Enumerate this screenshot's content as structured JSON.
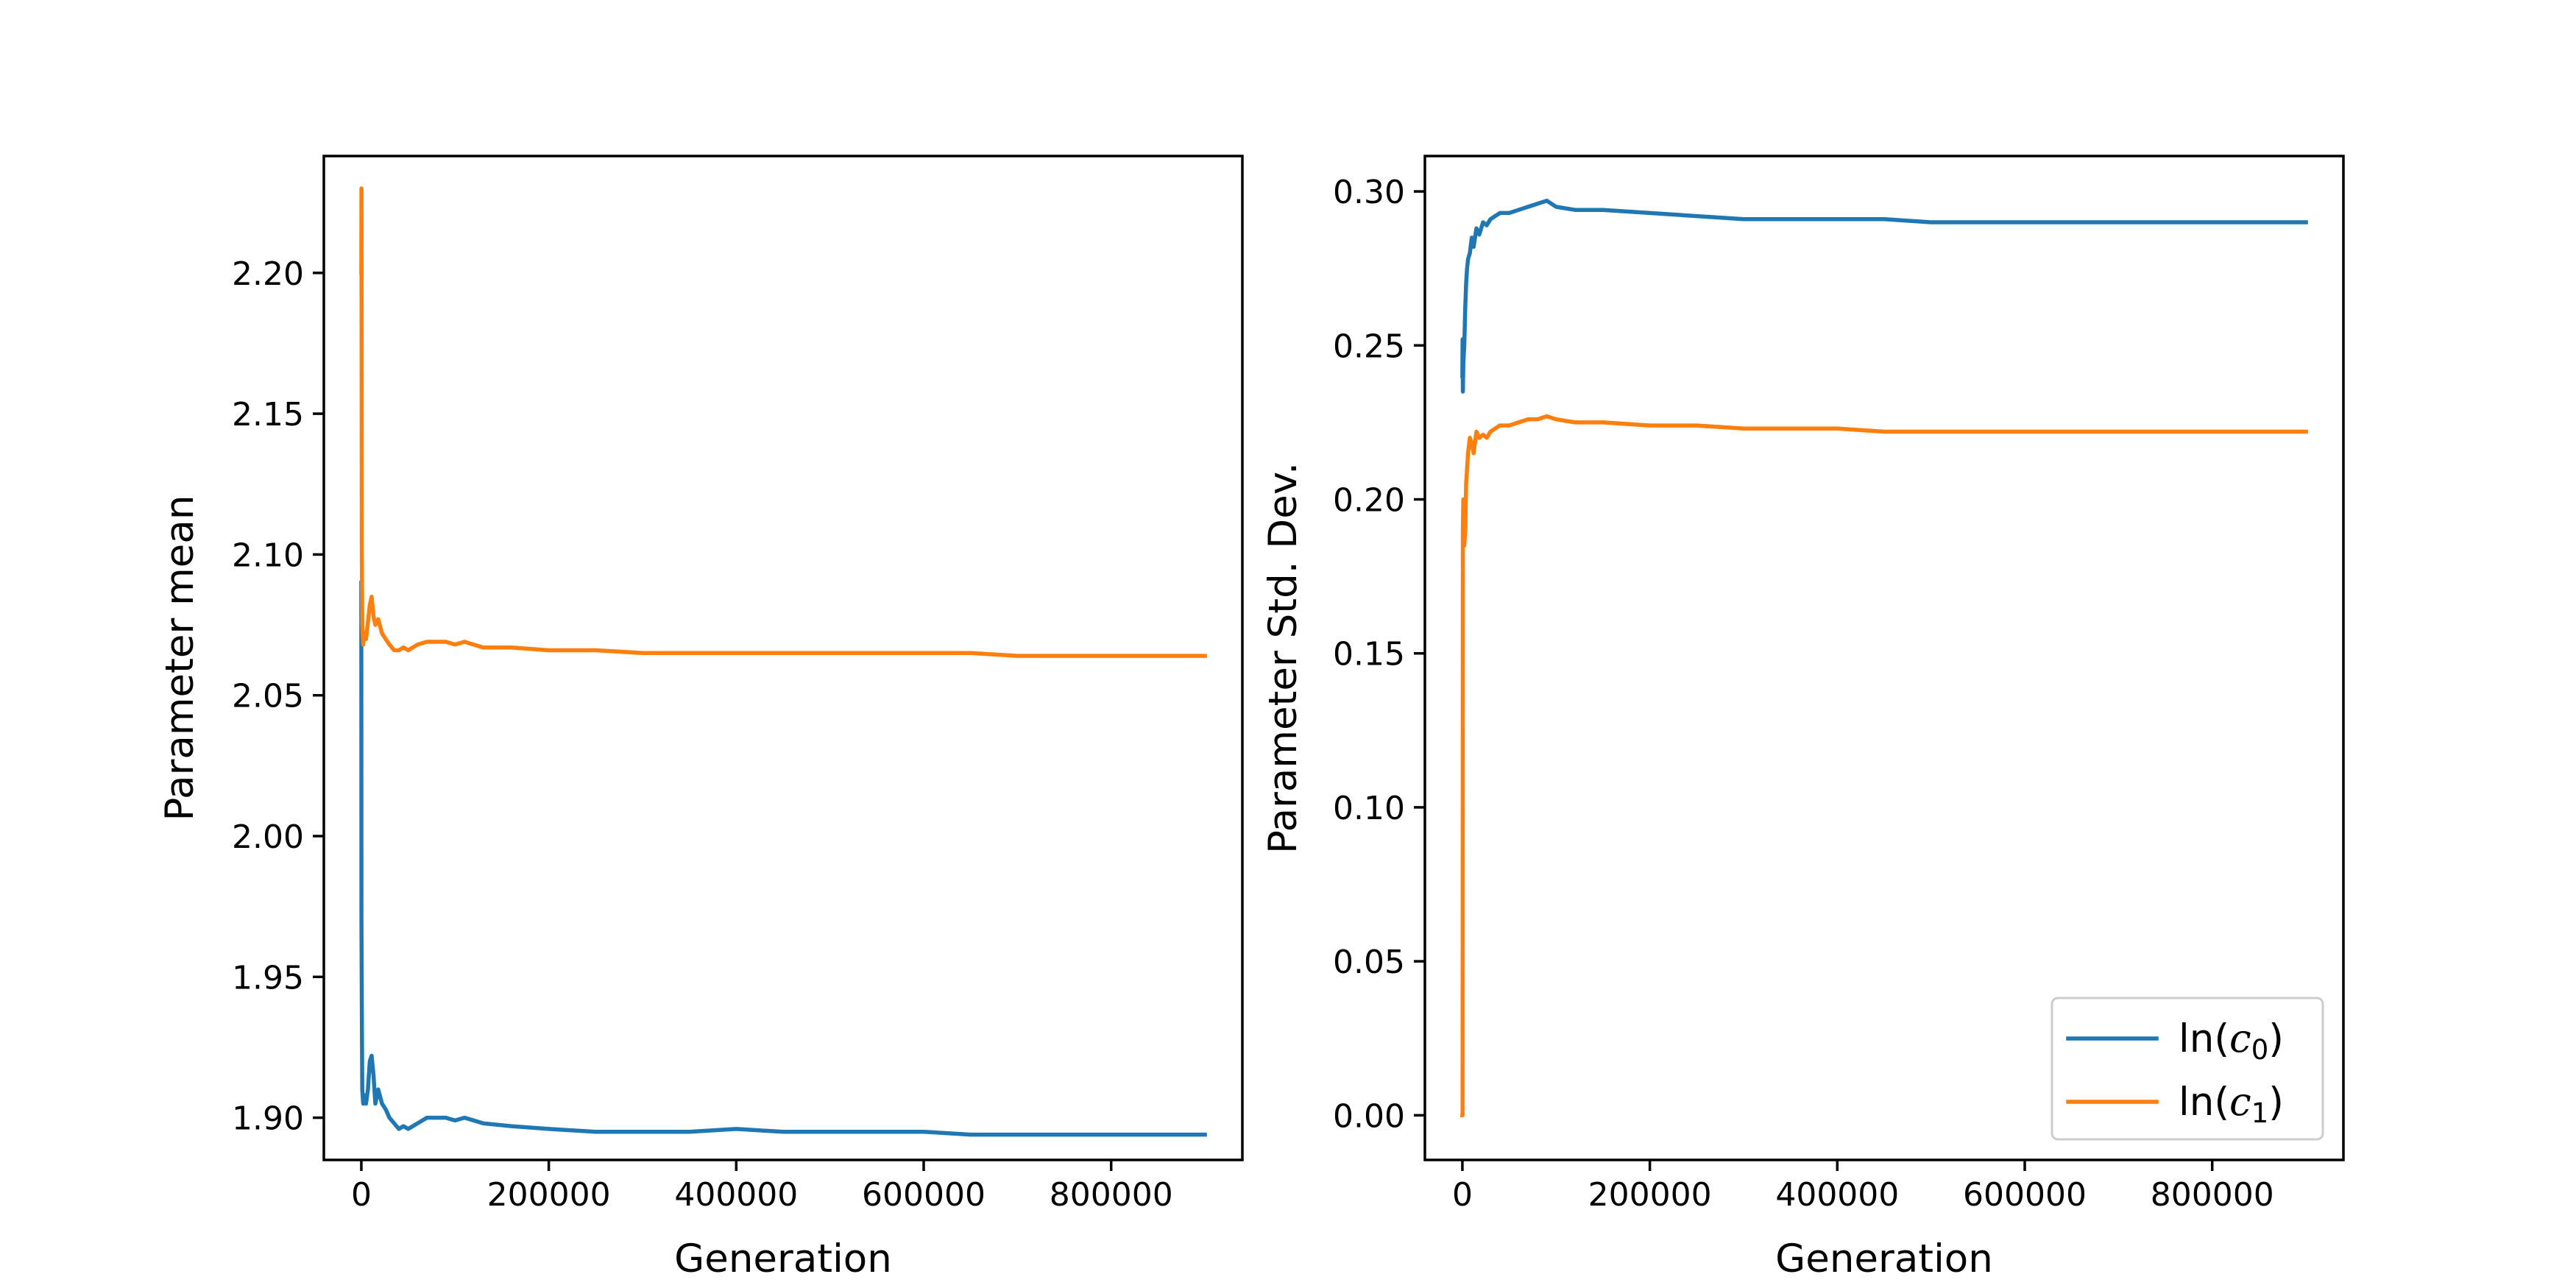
{
  "colors": {
    "series0": "#1f77b4",
    "series1": "#ff7f0e",
    "legend_frame": "#cccccc"
  },
  "legend": {
    "placement": "lower-right",
    "panel": 1,
    "entries": [
      {
        "prefix": "ln(",
        "var": "c",
        "sub": "0",
        "suffix": ")",
        "series_index": 0
      },
      {
        "prefix": "ln(",
        "var": "c",
        "sub": "1",
        "suffix": ")",
        "series_index": 1
      }
    ]
  },
  "chart_data": [
    {
      "type": "line",
      "xlabel": "Generation",
      "ylabel": "Parameter mean",
      "xlim": [
        -40000,
        940000
      ],
      "ylim": [
        1.885,
        2.2415
      ],
      "grid": false,
      "xticks": [
        0,
        200000,
        400000,
        600000,
        800000
      ],
      "xtick_labels": [
        "0",
        "200000",
        "400000",
        "600000",
        "800000"
      ],
      "yticks": [
        1.9,
        1.95,
        2.0,
        2.05,
        2.1,
        2.15,
        2.2
      ],
      "ytick_labels": [
        "1.90",
        "1.95",
        "2.00",
        "2.05",
        "2.10",
        "2.15",
        "2.20"
      ],
      "series": [
        {
          "name": "ln(c0)",
          "color_key": "series0",
          "x": [
            0,
            100,
            500,
            1000,
            2000,
            3000,
            5000,
            7000,
            9000,
            11000,
            13000,
            15000,
            18000,
            22000,
            26000,
            30000,
            35000,
            40000,
            45000,
            50000,
            60000,
            70000,
            80000,
            90000,
            100000,
            110000,
            130000,
            160000,
            200000,
            250000,
            300000,
            350000,
            400000,
            450000,
            500000,
            550000,
            600000,
            650000,
            700000,
            750000,
            800000,
            850000,
            900000
          ],
          "values": [
            2.09,
            1.97,
            1.94,
            1.91,
            1.905,
            1.908,
            1.905,
            1.91,
            1.92,
            1.922,
            1.915,
            1.905,
            1.91,
            1.905,
            1.903,
            1.9,
            1.898,
            1.896,
            1.897,
            1.896,
            1.898,
            1.9,
            1.9,
            1.9,
            1.899,
            1.9,
            1.898,
            1.897,
            1.896,
            1.895,
            1.895,
            1.895,
            1.896,
            1.895,
            1.895,
            1.895,
            1.895,
            1.894,
            1.894,
            1.894,
            1.894,
            1.894,
            1.894
          ]
        },
        {
          "name": "ln(c1)",
          "color_key": "series1",
          "x": [
            0,
            100,
            500,
            1000,
            2000,
            3000,
            5000,
            7000,
            9000,
            11000,
            13000,
            15000,
            18000,
            22000,
            26000,
            30000,
            35000,
            40000,
            45000,
            50000,
            60000,
            70000,
            80000,
            90000,
            100000,
            110000,
            130000,
            160000,
            200000,
            250000,
            300000,
            350000,
            400000,
            450000,
            500000,
            550000,
            600000,
            650000,
            700000,
            750000,
            800000,
            850000,
            900000
          ],
          "values": [
            2.2,
            2.23,
            2.1,
            2.075,
            2.068,
            2.072,
            2.07,
            2.076,
            2.082,
            2.085,
            2.078,
            2.075,
            2.077,
            2.072,
            2.07,
            2.068,
            2.066,
            2.066,
            2.067,
            2.066,
            2.068,
            2.069,
            2.069,
            2.069,
            2.068,
            2.069,
            2.067,
            2.067,
            2.066,
            2.066,
            2.065,
            2.065,
            2.065,
            2.065,
            2.065,
            2.065,
            2.065,
            2.065,
            2.064,
            2.064,
            2.064,
            2.064,
            2.064
          ]
        }
      ]
    },
    {
      "type": "line",
      "xlabel": "Generation",
      "ylabel": "Parameter Std. Dev.",
      "xlim": [
        -40000,
        940000
      ],
      "ylim": [
        -0.0145,
        0.3115
      ],
      "grid": false,
      "xticks": [
        0,
        200000,
        400000,
        600000,
        800000
      ],
      "xtick_labels": [
        "0",
        "200000",
        "400000",
        "600000",
        "800000"
      ],
      "yticks": [
        0.0,
        0.05,
        0.1,
        0.15,
        0.2,
        0.25,
        0.3
      ],
      "ytick_labels": [
        "0.00",
        "0.05",
        "0.10",
        "0.15",
        "0.20",
        "0.25",
        "0.30"
      ],
      "series": [
        {
          "name": "ln(c0)",
          "color_key": "series0",
          "x": [
            0,
            200,
            500,
            1000,
            2000,
            3000,
            4000,
            5000,
            6000,
            8000,
            10000,
            12000,
            15000,
            18000,
            22000,
            26000,
            30000,
            35000,
            40000,
            50000,
            60000,
            70000,
            80000,
            90000,
            100000,
            120000,
            150000,
            200000,
            250000,
            300000,
            350000,
            400000,
            450000,
            500000,
            550000,
            600000,
            650000,
            700000,
            750000,
            800000,
            850000,
            900000
          ],
          "values": [
            0.24,
            0.252,
            0.235,
            0.244,
            0.25,
            0.262,
            0.27,
            0.275,
            0.278,
            0.28,
            0.285,
            0.282,
            0.288,
            0.286,
            0.29,
            0.289,
            0.291,
            0.292,
            0.293,
            0.293,
            0.294,
            0.295,
            0.296,
            0.297,
            0.295,
            0.294,
            0.294,
            0.293,
            0.292,
            0.291,
            0.291,
            0.291,
            0.291,
            0.29,
            0.29,
            0.29,
            0.29,
            0.29,
            0.29,
            0.29,
            0.29,
            0.29
          ]
        },
        {
          "name": "ln(c1)",
          "color_key": "series1",
          "x": [
            0,
            200,
            500,
            1000,
            2000,
            3000,
            4000,
            5000,
            6000,
            8000,
            10000,
            12000,
            15000,
            18000,
            22000,
            26000,
            30000,
            35000,
            40000,
            50000,
            60000,
            70000,
            80000,
            90000,
            100000,
            120000,
            150000,
            200000,
            250000,
            300000,
            350000,
            400000,
            450000,
            500000,
            550000,
            600000,
            650000,
            700000,
            750000,
            800000,
            850000,
            900000
          ],
          "values": [
            0.0,
            0.0,
            0.19,
            0.2,
            0.185,
            0.19,
            0.205,
            0.21,
            0.215,
            0.22,
            0.218,
            0.215,
            0.222,
            0.22,
            0.221,
            0.22,
            0.222,
            0.223,
            0.224,
            0.224,
            0.225,
            0.226,
            0.226,
            0.227,
            0.226,
            0.225,
            0.225,
            0.224,
            0.224,
            0.223,
            0.223,
            0.223,
            0.222,
            0.222,
            0.222,
            0.222,
            0.222,
            0.222,
            0.222,
            0.222,
            0.222,
            0.222
          ]
        }
      ]
    }
  ]
}
